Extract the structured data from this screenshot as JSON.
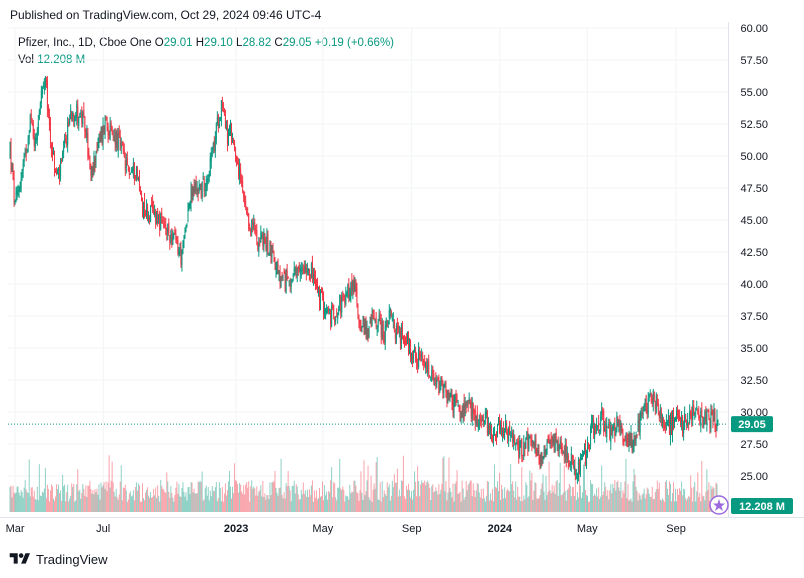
{
  "header": {
    "published": "Published on TradingView.com, Oct 29, 2024 09:46 UTC-4"
  },
  "legend": {
    "symbol": "Pfizer, Inc., 1D, Cboe One",
    "open_label": "O",
    "open": "29.01",
    "high_label": "H",
    "high": "29.10",
    "low_label": "L",
    "low": "28.82",
    "close_label": "C",
    "close": "29.05",
    "change": "+0.19 (+0.66%)",
    "vol_label": "Vol",
    "vol": "12.208 M"
  },
  "footer": {
    "brand": "TradingView"
  },
  "chart_data": {
    "type": "line",
    "title": "Pfizer, Inc., 1D, Cboe One",
    "ylim": [
      25,
      60
    ],
    "y_ticks": [
      "60.00",
      "57.50",
      "55.00",
      "52.50",
      "50.00",
      "47.50",
      "45.00",
      "42.50",
      "40.00",
      "37.50",
      "35.00",
      "32.50",
      "30.00",
      "27.50",
      "25.00"
    ],
    "x_ticks": [
      "Mar",
      "Jul",
      "2023",
      "May",
      "Sep",
      "2024",
      "May",
      "Sep"
    ],
    "x_ticks_bold": [
      "2023",
      "2024"
    ],
    "last_price": "29.05",
    "last_volume": "12.208 M",
    "colors": {
      "up": "#089981",
      "down": "#f23645",
      "last_price": "#089981",
      "volume_label": "#089981"
    },
    "price_path": [
      [
        "2022-02-22",
        50.5
      ],
      [
        "2022-03-01",
        46.0
      ],
      [
        "2022-03-08",
        48.0
      ],
      [
        "2022-03-15",
        50.0
      ],
      [
        "2022-03-22",
        53.0
      ],
      [
        "2022-03-29",
        51.0
      ],
      [
        "2022-04-05",
        54.5
      ],
      [
        "2022-04-12",
        55.6
      ],
      [
        "2022-04-19",
        51.5
      ],
      [
        "2022-04-26",
        48.5
      ],
      [
        "2022-05-03",
        48.8
      ],
      [
        "2022-05-10",
        51.0
      ],
      [
        "2022-05-17",
        53.5
      ],
      [
        "2022-05-24",
        53.5
      ],
      [
        "2022-05-31",
        53.0
      ],
      [
        "2022-06-07",
        52.0
      ],
      [
        "2022-06-14",
        48.0
      ],
      [
        "2022-06-21",
        50.5
      ],
      [
        "2022-06-28",
        51.5
      ],
      [
        "2022-07-05",
        53.0
      ],
      [
        "2022-07-12",
        51.5
      ],
      [
        "2022-07-19",
        51.5
      ],
      [
        "2022-07-26",
        50.5
      ],
      [
        "2022-08-02",
        49.0
      ],
      [
        "2022-08-09",
        48.8
      ],
      [
        "2022-08-16",
        49.0
      ],
      [
        "2022-08-23",
        46.5
      ],
      [
        "2022-08-30",
        45.5
      ],
      [
        "2022-09-06",
        45.5
      ],
      [
        "2022-09-13",
        45.5
      ],
      [
        "2022-09-20",
        44.5
      ],
      [
        "2022-09-27",
        44.0
      ],
      [
        "2022-10-04",
        43.8
      ],
      [
        "2022-10-11",
        43.0
      ],
      [
        "2022-10-18",
        42.0
      ],
      [
        "2022-10-25",
        45.5
      ],
      [
        "2022-11-01",
        47.0
      ],
      [
        "2022-11-08",
        47.5
      ],
      [
        "2022-11-15",
        47.5
      ],
      [
        "2022-11-22",
        48.5
      ],
      [
        "2022-11-29",
        50.0
      ],
      [
        "2022-12-06",
        52.5
      ],
      [
        "2022-12-13",
        54.5
      ],
      [
        "2022-12-20",
        51.5
      ],
      [
        "2022-12-27",
        51.5
      ],
      [
        "2023-01-03",
        49.5
      ],
      [
        "2023-01-10",
        47.0
      ],
      [
        "2023-01-17",
        44.5
      ],
      [
        "2023-01-24",
        44.5
      ],
      [
        "2023-01-31",
        43.5
      ],
      [
        "2023-02-07",
        43.5
      ],
      [
        "2023-02-14",
        43.0
      ],
      [
        "2023-02-21",
        42.5
      ],
      [
        "2023-02-28",
        40.5
      ],
      [
        "2023-03-07",
        40.0
      ],
      [
        "2023-03-14",
        40.5
      ],
      [
        "2023-03-21",
        40.5
      ],
      [
        "2023-03-28",
        40.5
      ],
      [
        "2023-04-04",
        41.5
      ],
      [
        "2023-04-11",
        41.5
      ],
      [
        "2023-04-18",
        40.5
      ],
      [
        "2023-04-25",
        39.0
      ],
      [
        "2023-05-02",
        38.5
      ],
      [
        "2023-05-09",
        37.5
      ],
      [
        "2023-05-16",
        37.5
      ],
      [
        "2023-05-23",
        38.5
      ],
      [
        "2023-05-30",
        38.5
      ],
      [
        "2023-06-06",
        39.5
      ],
      [
        "2023-06-13",
        40.0
      ],
      [
        "2023-06-20",
        37.5
      ],
      [
        "2023-06-27",
        36.5
      ],
      [
        "2023-07-04",
        36.5
      ],
      [
        "2023-07-11",
        37.5
      ],
      [
        "2023-07-18",
        37.0
      ],
      [
        "2023-07-25",
        36.0
      ],
      [
        "2023-08-01",
        37.5
      ],
      [
        "2023-08-08",
        36.5
      ],
      [
        "2023-08-15",
        36.0
      ],
      [
        "2023-08-22",
        36.0
      ],
      [
        "2023-08-29",
        35.0
      ],
      [
        "2023-09-05",
        34.5
      ],
      [
        "2023-09-12",
        34.0
      ],
      [
        "2023-09-19",
        33.5
      ],
      [
        "2023-09-26",
        33.0
      ],
      [
        "2023-10-03",
        32.0
      ],
      [
        "2023-10-10",
        32.0
      ],
      [
        "2023-10-17",
        31.5
      ],
      [
        "2023-10-24",
        31.0
      ],
      [
        "2023-10-31",
        30.5
      ],
      [
        "2023-11-07",
        30.0
      ],
      [
        "2023-11-14",
        30.0
      ],
      [
        "2023-11-21",
        30.5
      ],
      [
        "2023-11-28",
        29.5
      ],
      [
        "2023-12-05",
        29.0
      ],
      [
        "2023-12-12",
        29.5
      ],
      [
        "2023-12-19",
        28.5
      ],
      [
        "2023-12-26",
        28.5
      ],
      [
        "2024-01-02",
        29.0
      ],
      [
        "2024-01-09",
        28.5
      ],
      [
        "2024-01-16",
        28.0
      ],
      [
        "2024-01-23",
        27.5
      ],
      [
        "2024-01-30",
        27.0
      ],
      [
        "2024-02-06",
        28.0
      ],
      [
        "2024-02-13",
        27.5
      ],
      [
        "2024-02-20",
        27.0
      ],
      [
        "2024-02-27",
        26.5
      ],
      [
        "2024-03-05",
        27.5
      ],
      [
        "2024-03-12",
        28.0
      ],
      [
        "2024-03-19",
        27.5
      ],
      [
        "2024-03-26",
        27.5
      ],
      [
        "2024-04-02",
        27.0
      ],
      [
        "2024-04-09",
        26.0
      ],
      [
        "2024-04-16",
        25.5
      ],
      [
        "2024-04-23",
        25.8
      ],
      [
        "2024-04-30",
        27.0
      ],
      [
        "2024-05-07",
        28.5
      ],
      [
        "2024-05-14",
        29.0
      ],
      [
        "2024-05-21",
        29.5
      ],
      [
        "2024-05-28",
        28.5
      ],
      [
        "2024-06-04",
        28.5
      ],
      [
        "2024-06-11",
        29.0
      ],
      [
        "2024-06-18",
        28.5
      ],
      [
        "2024-06-25",
        28.0
      ],
      [
        "2024-07-02",
        28.0
      ],
      [
        "2024-07-09",
        28.5
      ],
      [
        "2024-07-16",
        30.0
      ],
      [
        "2024-07-23",
        30.5
      ],
      [
        "2024-07-30",
        31.5
      ],
      [
        "2024-08-06",
        30.5
      ],
      [
        "2024-08-13",
        29.5
      ],
      [
        "2024-08-20",
        29.0
      ],
      [
        "2024-08-27",
        29.0
      ],
      [
        "2024-09-03",
        29.5
      ],
      [
        "2024-09-10",
        29.0
      ],
      [
        "2024-09-17",
        29.5
      ],
      [
        "2024-09-24",
        30.0
      ],
      [
        "2024-10-01",
        29.5
      ],
      [
        "2024-10-08",
        29.5
      ],
      [
        "2024-10-15",
        29.5
      ],
      [
        "2024-10-22",
        29.5
      ],
      [
        "2024-10-29",
        29.05
      ]
    ]
  }
}
